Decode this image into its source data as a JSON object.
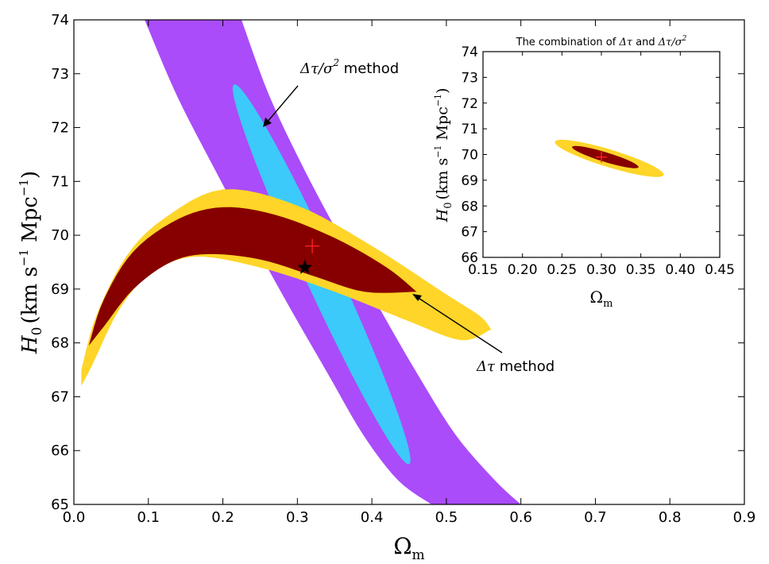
{
  "chart_data": [
    {
      "type": "contour",
      "xlabel": "Ωm",
      "ylabel": "H0 (km s⁻¹ Mpc⁻¹)",
      "xlim": [
        0.0,
        0.9
      ],
      "ylim": [
        65,
        74
      ],
      "xticks": [
        0.0,
        0.1,
        0.2,
        0.3,
        0.4,
        0.5,
        0.6,
        0.7,
        0.8,
        0.9
      ],
      "xtick_labels": [
        "0.0",
        "0.1",
        "0.2",
        "0.3",
        "0.4",
        "0.5",
        "0.6",
        "0.7",
        "0.8",
        "0.9"
      ],
      "yticks": [
        65,
        66,
        67,
        68,
        69,
        70,
        71,
        72,
        73,
        74
      ],
      "ytick_labels": [
        "65",
        "66",
        "67",
        "68",
        "69",
        "70",
        "71",
        "72",
        "73",
        "74"
      ],
      "colors": {
        "dtau_sigma2_2sigma": "#aa4cfa",
        "dtau_sigma2_1sigma": "#3ccafa",
        "dtau_2sigma": "#fed528",
        "dtau_1sigma": "#870000",
        "best_fit": "#ff2020",
        "fiducial": "#000000"
      },
      "series": [
        {
          "key": "dtau_sigma2_2sigma",
          "contour": "2sigma",
          "ridge": [
            [
              0.16,
              74.0
            ],
            [
              0.2,
              72.6
            ],
            [
              0.25,
              71.2
            ],
            [
              0.3,
              69.9
            ],
            [
              0.35,
              68.65
            ],
            [
              0.4,
              67.45
            ],
            [
              0.45,
              66.3
            ],
            [
              0.5,
              65.45
            ],
            [
              0.54,
              65.0
            ]
          ],
          "half_width": [
            0.065,
            0.062,
            0.06,
            0.06,
            0.06,
            0.06,
            0.062,
            0.065,
            0.06
          ]
        },
        {
          "key": "dtau_sigma2_1sigma",
          "contour": "1sigma",
          "center": [
            0.325,
            69.35
          ],
          "tip_top": [
            0.215,
            72.8
          ],
          "tip_bottom": [
            0.45,
            65.75
          ],
          "half_width_mid": 0.045
        },
        {
          "key": "dtau_2sigma",
          "contour": "2sigma",
          "upper": [
            [
              0.01,
              67.5
            ],
            [
              0.03,
              68.5
            ],
            [
              0.07,
              69.6
            ],
            [
              0.12,
              70.3
            ],
            [
              0.2,
              70.85
            ],
            [
              0.3,
              70.55
            ],
            [
              0.4,
              69.8
            ],
            [
              0.5,
              68.9
            ],
            [
              0.545,
              68.5
            ],
            [
              0.56,
              68.25
            ]
          ],
          "lower": [
            [
              0.01,
              67.2
            ],
            [
              0.025,
              67.6
            ],
            [
              0.06,
              68.6
            ],
            [
              0.1,
              69.25
            ],
            [
              0.16,
              69.6
            ],
            [
              0.25,
              69.4
            ],
            [
              0.35,
              68.95
            ],
            [
              0.45,
              68.4
            ],
            [
              0.52,
              68.05
            ],
            [
              0.56,
              68.25
            ]
          ]
        },
        {
          "key": "dtau_1sigma",
          "contour": "1sigma",
          "upper": [
            [
              0.02,
              67.95
            ],
            [
              0.04,
              68.8
            ],
            [
              0.08,
              69.7
            ],
            [
              0.14,
              70.3
            ],
            [
              0.2,
              70.52
            ],
            [
              0.27,
              70.38
            ],
            [
              0.35,
              69.95
            ],
            [
              0.42,
              69.4
            ],
            [
              0.46,
              68.95
            ]
          ],
          "lower": [
            [
              0.02,
              67.95
            ],
            [
              0.04,
              68.3
            ],
            [
              0.08,
              69.0
            ],
            [
              0.13,
              69.5
            ],
            [
              0.18,
              69.65
            ],
            [
              0.25,
              69.55
            ],
            [
              0.32,
              69.25
            ],
            [
              0.39,
              68.95
            ],
            [
              0.46,
              68.95
            ]
          ]
        }
      ],
      "best_fit": {
        "x": 0.32,
        "y": 69.8,
        "marker": "+"
      },
      "fiducial_star": {
        "x": 0.31,
        "y": 69.4,
        "marker": "star"
      },
      "annotations": [
        {
          "label": "Δτ/σ²  method",
          "points_to": [
            0.25,
            72.0
          ]
        },
        {
          "label": "Δτ method",
          "points_to": [
            0.455,
            68.9
          ]
        }
      ]
    },
    {
      "type": "contour",
      "title": "The combination of Δτ and Δτ/σ²",
      "xlabel": "Ωm",
      "ylabel": "H0 (km s⁻¹ Mpc⁻¹)",
      "xlim": [
        0.15,
        0.45
      ],
      "ylim": [
        66,
        74
      ],
      "xticks": [
        0.15,
        0.2,
        0.25,
        0.3,
        0.35,
        0.4,
        0.45
      ],
      "xtick_labels": [
        "0.15",
        "0.20",
        "0.25",
        "0.30",
        "0.35",
        "0.40",
        "0.45"
      ],
      "yticks": [
        66,
        67,
        68,
        69,
        70,
        71,
        72,
        73,
        74
      ],
      "ytick_labels": [
        "66",
        "67",
        "68",
        "69",
        "70",
        "71",
        "72",
        "73",
        "74"
      ],
      "series": [
        {
          "key": "combined_2sigma",
          "contour": "2sigma",
          "center": [
            0.31,
            69.85
          ],
          "semi_axis_x": 0.072,
          "semi_axis_y": 0.62
        },
        {
          "key": "combined_1sigma",
          "contour": "1sigma",
          "center": [
            0.305,
            69.9
          ],
          "semi_axis_x": 0.044,
          "semi_axis_y": 0.34
        }
      ],
      "best_fit": {
        "x": 0.3,
        "y": 69.9,
        "marker": "+"
      }
    }
  ],
  "labels": {
    "xlabel_main": "Ω",
    "xlabel_sub": "m",
    "ylabel_h": "H",
    "ylabel_sub": "0",
    "ylabel_units_a": "(km s",
    "ylabel_units_exp": "−1",
    "ylabel_units_b": " Mpc",
    "ylabel_units_c": ")",
    "annot1_math": "Δτ/σ",
    "annot1_exp": "2",
    "annot1_word": " method",
    "annot2_math": "Δτ",
    "annot2_word": " method",
    "inset_title_a": "The combination of ",
    "inset_title_b": "Δτ",
    "inset_title_c": " and ",
    "inset_title_d": "Δτ/σ",
    "inset_title_exp": "2"
  }
}
